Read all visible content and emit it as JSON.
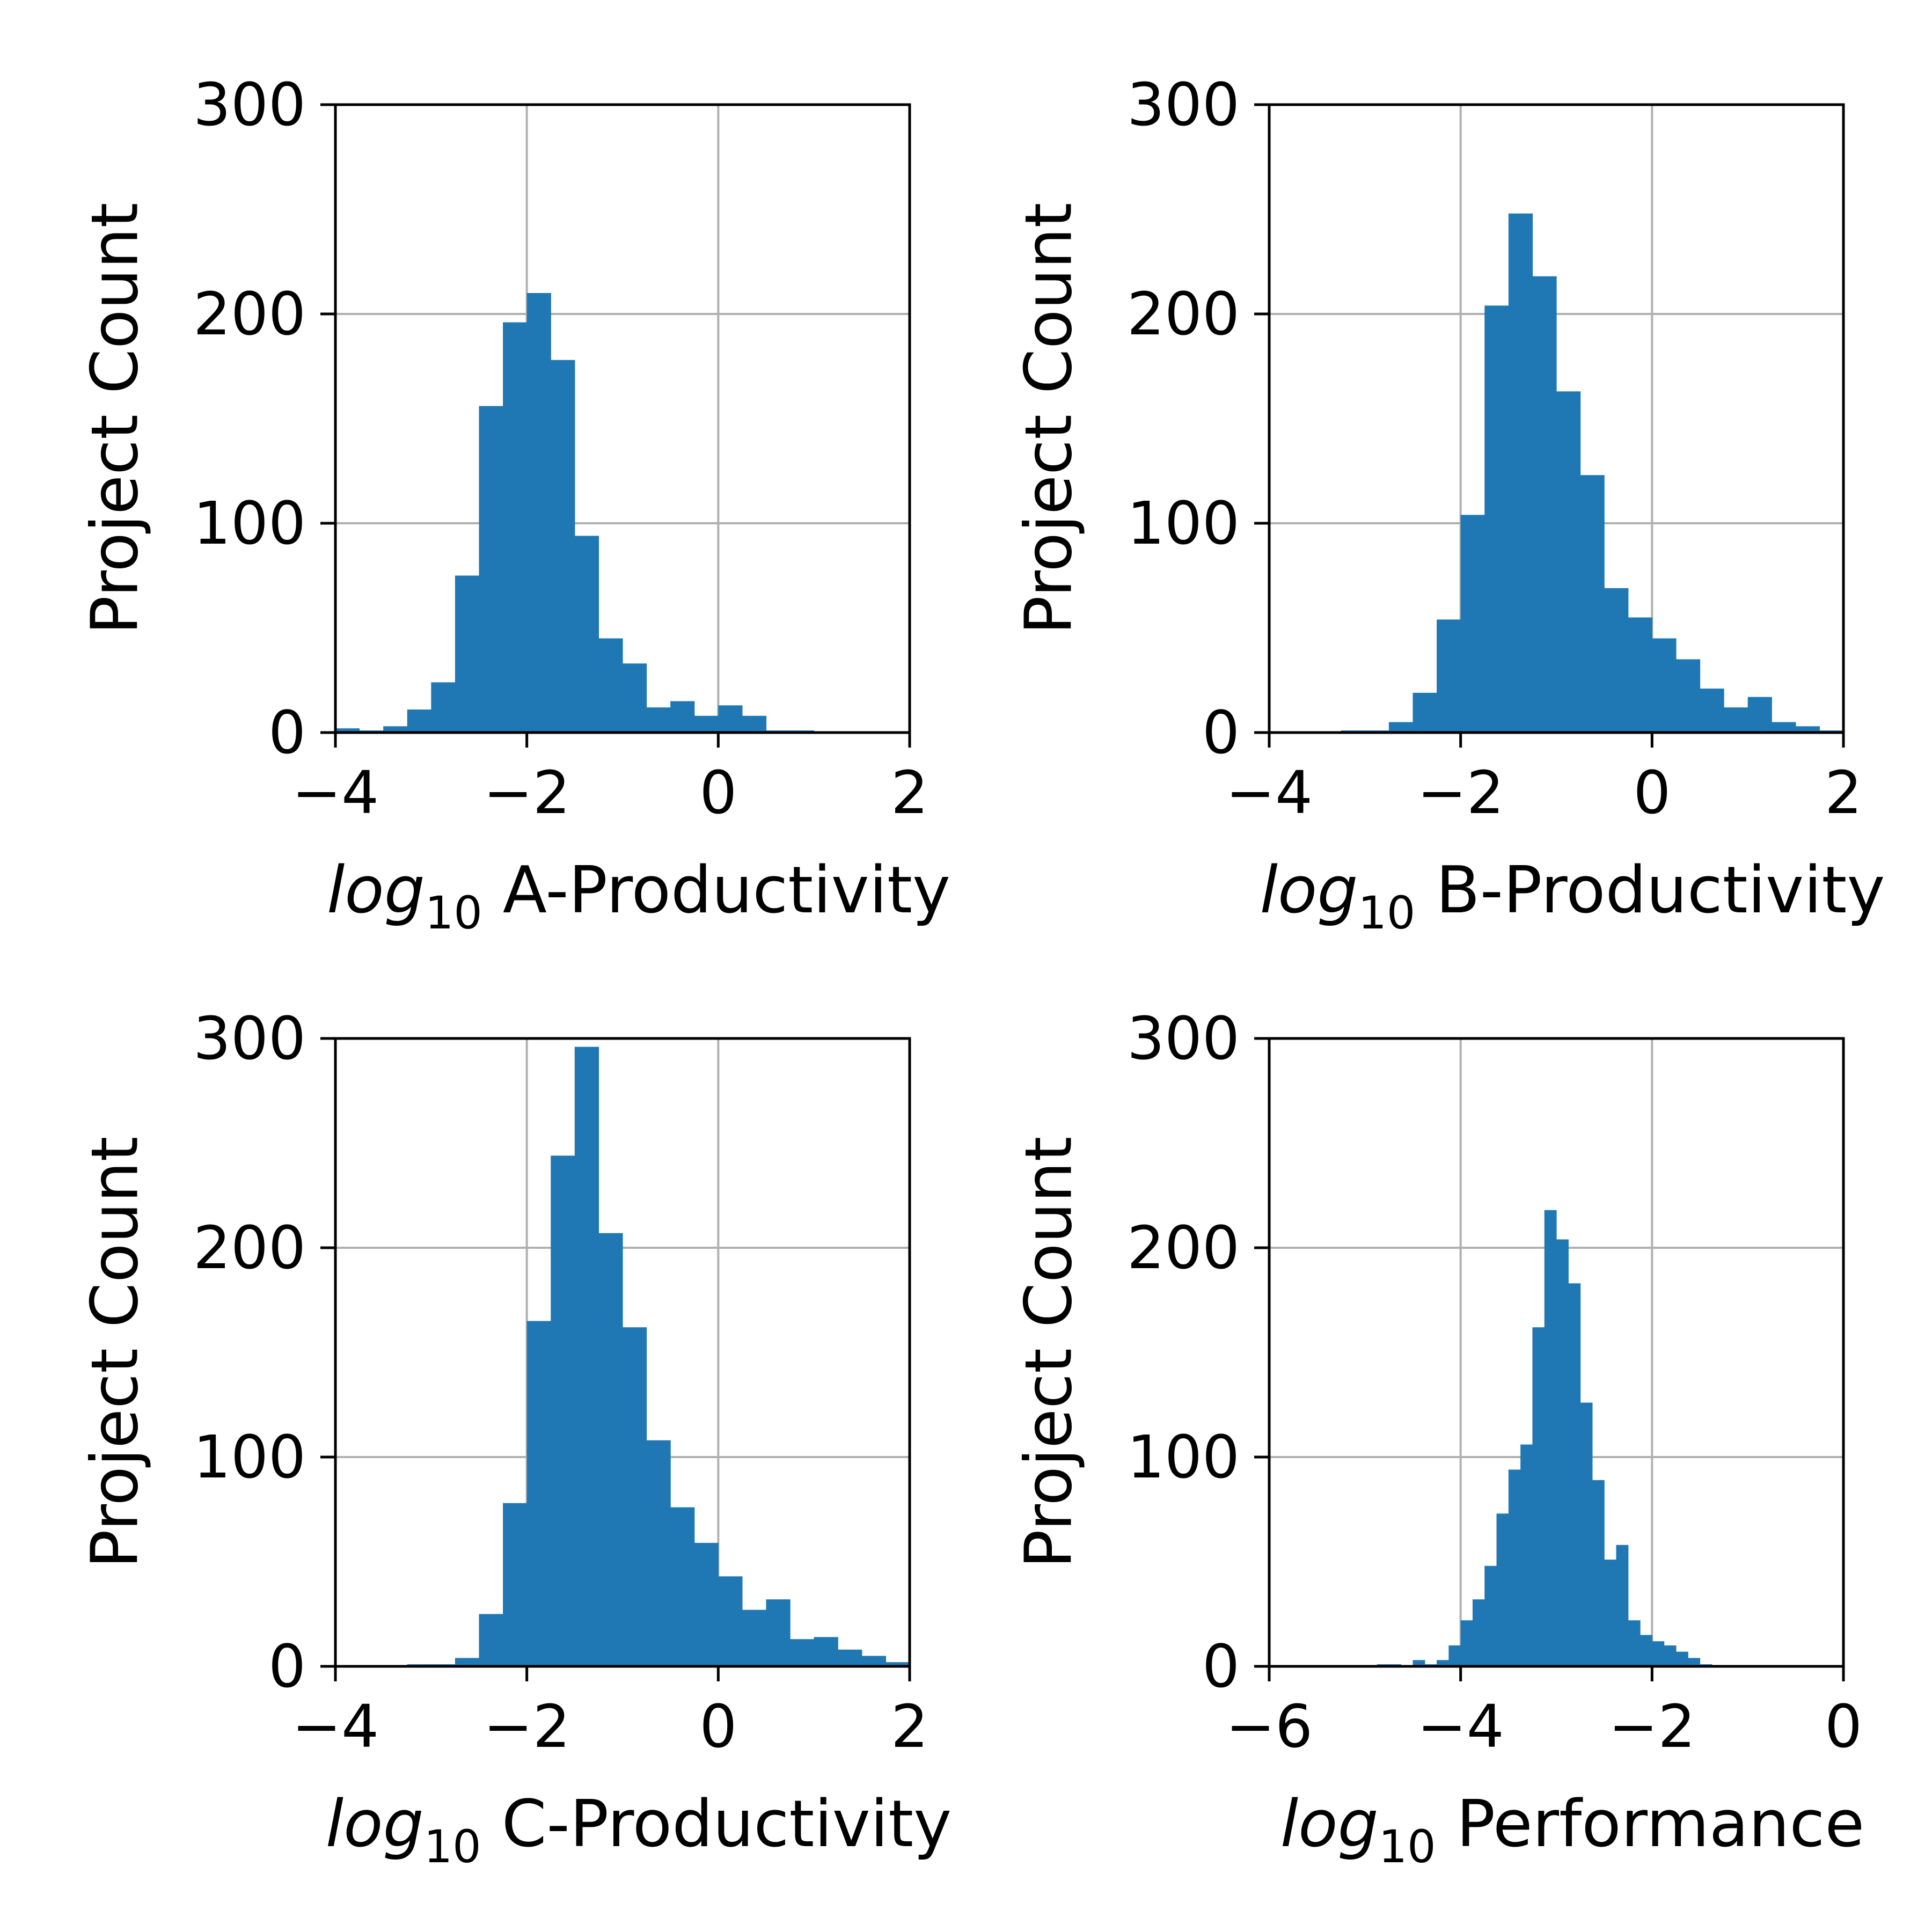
{
  "style": {
    "bar_color": "#1f77b4",
    "grid_color": "#b0b0b0",
    "axis_color": "#000000"
  },
  "chart_data": [
    {
      "type": "bar",
      "panel": "top-left",
      "xlabel_prefix": "log",
      "xlabel_sub": "10",
      "xlabel_text": "A-Productivity",
      "ylabel": "Project Count",
      "xlim": [
        -4,
        2
      ],
      "ylim": [
        0,
        300
      ],
      "xticks": [
        -4,
        -2,
        0,
        2
      ],
      "xtick_labels": [
        "−4",
        "−2",
        "0",
        "2"
      ],
      "yticks": [
        0,
        100,
        200,
        300
      ],
      "ytick_labels": [
        "0",
        "100",
        "200",
        "300"
      ],
      "grid": true,
      "bin_start": -4.0,
      "bin_width": 0.25,
      "values": [
        2,
        1,
        3,
        11,
        24,
        75,
        156,
        196,
        210,
        178,
        94,
        45,
        33,
        12,
        15,
        8,
        13,
        8,
        1,
        1,
        0,
        0,
        0,
        0
      ]
    },
    {
      "type": "bar",
      "panel": "top-right",
      "xlabel_prefix": "log",
      "xlabel_sub": "10",
      "xlabel_text": "B-Productivity",
      "ylabel": "Project Count",
      "xlim": [
        -4,
        2
      ],
      "ylim": [
        0,
        300
      ],
      "xticks": [
        -4,
        -2,
        0,
        2
      ],
      "xtick_labels": [
        "−4",
        "−2",
        "0",
        "2"
      ],
      "yticks": [
        0,
        100,
        200,
        300
      ],
      "ytick_labels": [
        "0",
        "100",
        "200",
        "300"
      ],
      "grid": true,
      "bin_start": -4.0,
      "bin_width": 0.25,
      "values": [
        0,
        0,
        0,
        1,
        1,
        5,
        19,
        54,
        104,
        204,
        248,
        218,
        163,
        123,
        69,
        55,
        45,
        35,
        21,
        12,
        17,
        5,
        3,
        1
      ]
    },
    {
      "type": "bar",
      "panel": "bottom-left",
      "xlabel_prefix": "log",
      "xlabel_sub": "10",
      "xlabel_text": "C-Productivity",
      "ylabel": "Project Count",
      "xlim": [
        -4,
        2
      ],
      "ylim": [
        0,
        300
      ],
      "xticks": [
        -4,
        -2,
        0,
        2
      ],
      "xtick_labels": [
        "−4",
        "−2",
        "0",
        "2"
      ],
      "yticks": [
        0,
        100,
        200,
        300
      ],
      "ytick_labels": [
        "0",
        "100",
        "200",
        "300"
      ],
      "grid": true,
      "bin_start": -4.0,
      "bin_width": 0.25,
      "values": [
        0,
        0,
        0,
        1,
        1,
        4,
        25,
        78,
        165,
        244,
        296,
        207,
        162,
        108,
        76,
        59,
        43,
        27,
        32,
        13,
        14,
        8,
        5,
        2
      ]
    },
    {
      "type": "bar",
      "panel": "bottom-right",
      "xlabel_prefix": "log",
      "xlabel_sub": "10",
      "xlabel_text": "Performance",
      "ylabel": "Project Count",
      "xlim": [
        -6,
        0
      ],
      "ylim": [
        0,
        300
      ],
      "xticks": [
        -6,
        -4,
        -2,
        0
      ],
      "xtick_labels": [
        "−6",
        "−4",
        "−2",
        "0"
      ],
      "yticks": [
        0,
        100,
        200,
        300
      ],
      "ytick_labels": [
        "0",
        "100",
        "200",
        "300"
      ],
      "grid": true,
      "bin_start": -4.875,
      "bin_width": 0.125,
      "values": [
        1,
        1,
        0,
        3,
        1,
        3,
        10,
        22,
        32,
        48,
        73,
        94,
        106,
        162,
        218,
        204,
        183,
        126,
        89,
        51,
        58,
        22,
        15,
        12,
        10,
        7,
        4,
        1
      ]
    }
  ]
}
